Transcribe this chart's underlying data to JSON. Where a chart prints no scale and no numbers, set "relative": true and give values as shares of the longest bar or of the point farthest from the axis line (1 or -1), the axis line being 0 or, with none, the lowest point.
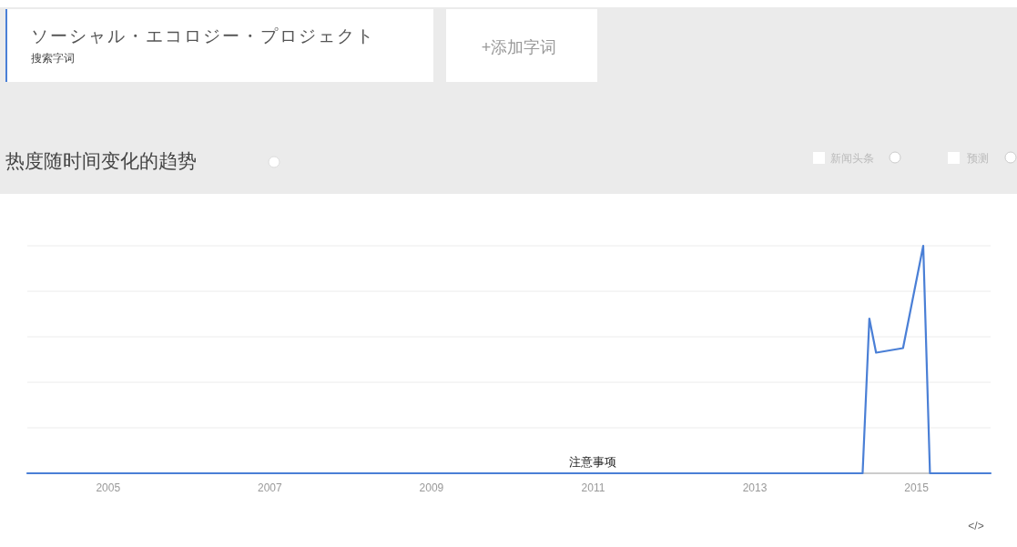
{
  "chart_data": {
    "type": "line",
    "title": "热度随时间变化的趋势",
    "relative": true,
    "legend": "top left",
    "grid": "y",
    "marker": "none",
    "line_style": "solid",
    "xlim": [
      "2004-01",
      "2015-12"
    ],
    "xticks": [
      "2005",
      "2007",
      "2009",
      "2011",
      "2013",
      "2015"
    ],
    "series": [
      {
        "name": "ソーシャル・エコロジー・プロジェクト",
        "color": "#4a7fd6",
        "x": [
          "2004-01",
          "2014-05",
          "2014-06",
          "2014-07",
          "2014-11",
          "2015-02",
          "2015-03",
          "2015-12"
        ],
        "values": [
          0,
          0,
          0.68,
          0.53,
          0.55,
          1,
          0,
          0
        ]
      }
    ],
    "annotations": [
      "搜索字词",
      "+添加字词",
      "新闻头条",
      "预测",
      {
        "text": "注意事项",
        "x": "2011",
        "y": 0
      },
      "</>"
    ]
  }
}
